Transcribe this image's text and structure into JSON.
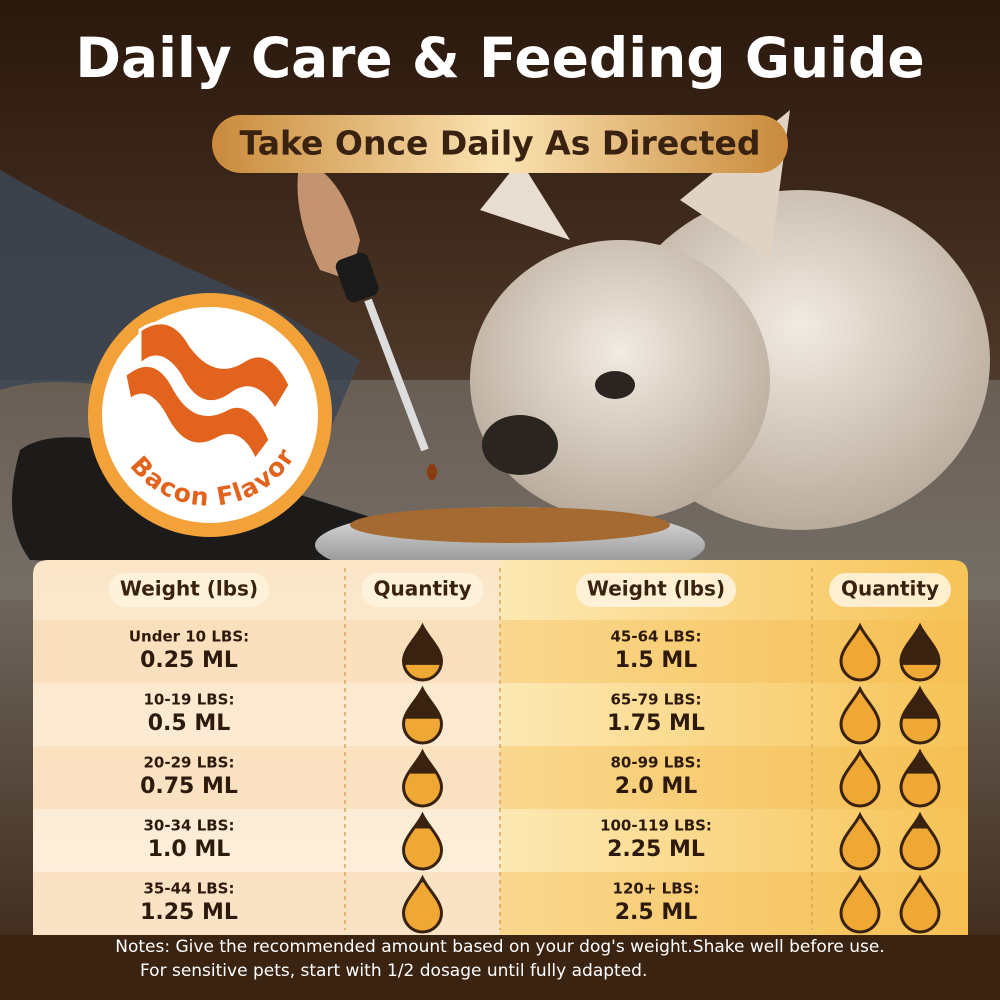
{
  "header": {
    "title": "Daily Care & Feeding Guide",
    "subtitle": "Take Once Daily As Directed"
  },
  "badge": {
    "label": "Bacon Flavor"
  },
  "table": {
    "headers": [
      "Weight (lbs)",
      "Quantity",
      "Weight (lbs)",
      "Quantity"
    ],
    "left_rows": [
      {
        "weight": "Under 10 LBS:",
        "dose": "0.25 ML"
      },
      {
        "weight": "10-19 LBS:",
        "dose": "0.5 ML"
      },
      {
        "weight": "20-29 LBS:",
        "dose": "0.75 ML"
      },
      {
        "weight": "30-34 LBS:",
        "dose": "1.0 ML"
      },
      {
        "weight": "35-44 LBS:",
        "dose": "1.25 ML"
      }
    ],
    "right_rows": [
      {
        "weight": "45-64 LBS:",
        "dose": "1.5 ML"
      },
      {
        "weight": "65-79 LBS:",
        "dose": "1.75 ML"
      },
      {
        "weight": "80-99 LBS:",
        "dose": "2.0 ML"
      },
      {
        "weight": "100-119 LBS:",
        "dose": "2.25 ML"
      },
      {
        "weight": "120+ LBS:",
        "dose": "2.5 ML"
      }
    ]
  },
  "notes": [
    "Notes: Give the recommended amount based on your dog's weight.Shake well before use.",
    "For sensitive pets, start with 1/2 dosage until fully adapted."
  ]
}
